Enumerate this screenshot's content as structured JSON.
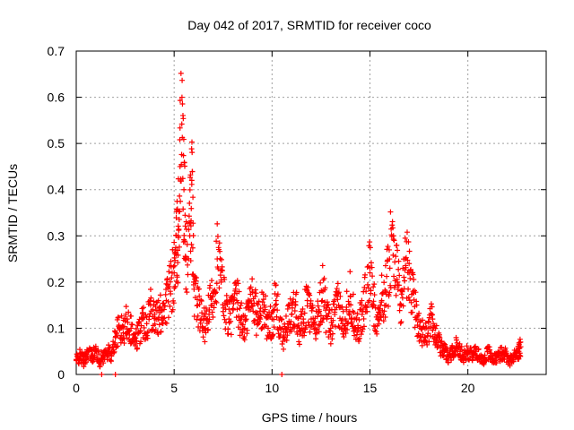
{
  "chart_data": {
    "type": "scatter",
    "title": "Day 042 of 2017, SRMTID for receiver coco",
    "xlabel": "GPS time / hours",
    "ylabel": "SRMTID / TECUs",
    "xlim": [
      0,
      24
    ],
    "ylim": [
      0,
      0.7
    ],
    "x_ticks": [
      0,
      5,
      10,
      15,
      20
    ],
    "x_tick_labels": [
      "0",
      "5",
      "10",
      "15",
      "20"
    ],
    "y_ticks": [
      0,
      0.1,
      0.2,
      0.3,
      0.4,
      0.5,
      0.6,
      0.7
    ],
    "y_tick_labels": [
      "0",
      "0.1",
      "0.2",
      "0.3",
      "0.4",
      "0.5",
      "0.6",
      "0.7"
    ],
    "grid": true,
    "marker": "plus",
    "series": [
      {
        "name": "SRMTID",
        "color": "#ff0000",
        "x": [
          0.0,
          0.2,
          0.4,
          0.6,
          0.8,
          1.0,
          1.2,
          1.4,
          1.6,
          1.8,
          2.0,
          2.2,
          2.4,
          2.6,
          2.8,
          3.0,
          3.2,
          3.4,
          3.6,
          3.8,
          4.0,
          4.2,
          4.4,
          4.6,
          4.8,
          5.0,
          5.1,
          5.2,
          5.3,
          5.4,
          5.5,
          5.6,
          5.8,
          5.9,
          6.0,
          6.2,
          6.4,
          6.6,
          6.8,
          7.0,
          7.2,
          7.4,
          7.6,
          7.8,
          8.0,
          8.2,
          8.4,
          8.6,
          8.8,
          9.0,
          9.2,
          9.4,
          9.6,
          9.8,
          10.0,
          10.2,
          10.4,
          10.6,
          10.8,
          11.0,
          11.2,
          11.4,
          11.6,
          11.8,
          12.0,
          12.2,
          12.4,
          12.6,
          12.8,
          13.0,
          13.2,
          13.4,
          13.6,
          13.8,
          14.0,
          14.2,
          14.4,
          14.6,
          14.8,
          15.0,
          15.2,
          15.4,
          15.6,
          15.8,
          16.0,
          16.2,
          16.4,
          16.6,
          16.8,
          17.0,
          17.2,
          17.4,
          17.6,
          17.8,
          18.0,
          18.2,
          18.4,
          18.6,
          18.8,
          19.0,
          19.2,
          19.4,
          19.6,
          19.8,
          20.0,
          20.2,
          20.4,
          20.6,
          20.8,
          21.0,
          21.2,
          21.4,
          21.6,
          21.8,
          22.0,
          22.2,
          22.4,
          22.6,
          22.7
        ],
        "y": [
          0.03,
          0.04,
          0.03,
          0.05,
          0.04,
          0.05,
          0.03,
          0.04,
          0.05,
          0.04,
          0.08,
          0.1,
          0.09,
          0.12,
          0.1,
          0.07,
          0.09,
          0.12,
          0.11,
          0.15,
          0.13,
          0.12,
          0.14,
          0.16,
          0.18,
          0.22,
          0.26,
          0.3,
          0.45,
          0.6,
          0.4,
          0.25,
          0.3,
          0.42,
          0.2,
          0.15,
          0.12,
          0.1,
          0.14,
          0.18,
          0.25,
          0.2,
          0.15,
          0.12,
          0.14,
          0.16,
          0.12,
          0.1,
          0.14,
          0.18,
          0.13,
          0.12,
          0.15,
          0.1,
          0.12,
          0.16,
          0.1,
          0.08,
          0.11,
          0.13,
          0.15,
          0.1,
          0.12,
          0.16,
          0.12,
          0.1,
          0.14,
          0.18,
          0.12,
          0.1,
          0.13,
          0.15,
          0.11,
          0.14,
          0.17,
          0.12,
          0.1,
          0.13,
          0.18,
          0.22,
          0.15,
          0.12,
          0.16,
          0.18,
          0.25,
          0.3,
          0.2,
          0.15,
          0.25,
          0.22,
          0.18,
          0.12,
          0.1,
          0.08,
          0.1,
          0.12,
          0.08,
          0.06,
          0.05,
          0.04,
          0.05,
          0.06,
          0.05,
          0.04,
          0.05,
          0.04,
          0.05,
          0.04,
          0.03,
          0.05,
          0.04,
          0.03,
          0.04,
          0.05,
          0.04,
          0.03,
          0.04,
          0.05,
          0.06
        ],
        "zero_points_x": [
          1.3,
          2.0,
          10.5
        ]
      }
    ]
  }
}
